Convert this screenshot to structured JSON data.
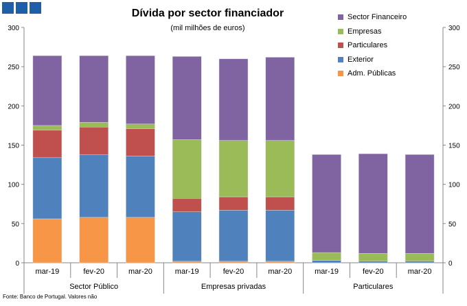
{
  "title": "Dívida por sector financiador",
  "subtitle": "(mil milhões de euros)",
  "source": "Fonte: Banco de Portugal. Valores não",
  "chart_data": {
    "type": "bar",
    "stacked": true,
    "groups": [
      {
        "label": "Sector Público",
        "categories": [
          "mar-19",
          "fev-20",
          "mar-20"
        ]
      },
      {
        "label": "Empresas privadas",
        "categories": [
          "mar-19",
          "fev-20",
          "mar-20"
        ]
      },
      {
        "label": "Particulares",
        "categories": [
          "mar-19",
          "fev-20",
          "mar-20"
        ]
      }
    ],
    "series": [
      {
        "name": "Adm. Públicas",
        "color": "#f79646",
        "values": [
          56,
          58,
          58,
          2,
          2,
          2,
          0,
          0,
          0
        ]
      },
      {
        "name": "Exterior",
        "color": "#4f81bd",
        "values": [
          78,
          80,
          78,
          63,
          65,
          65,
          3,
          2,
          2
        ]
      },
      {
        "name": "Particulares",
        "color": "#c0504d",
        "values": [
          35,
          35,
          35,
          17,
          17,
          17,
          0,
          0,
          0
        ]
      },
      {
        "name": "Empresas",
        "color": "#9bbb59",
        "values": [
          6,
          6,
          6,
          75,
          72,
          72,
          10,
          10,
          10
        ]
      },
      {
        "name": "Sector Financeiro",
        "color": "#8064a2",
        "values": [
          89,
          85,
          87,
          106,
          104,
          106,
          125,
          127,
          126
        ]
      }
    ],
    "legend_order": [
      "Sector Financeiro",
      "Empresas",
      "Particulares",
      "Exterior",
      "Adm. Públicas"
    ],
    "ylim": [
      0,
      300
    ],
    "yticks": [
      0,
      50,
      100,
      150,
      200,
      250,
      300
    ],
    "secondary_axis": true,
    "legend_position": "top-right",
    "grid": false
  }
}
